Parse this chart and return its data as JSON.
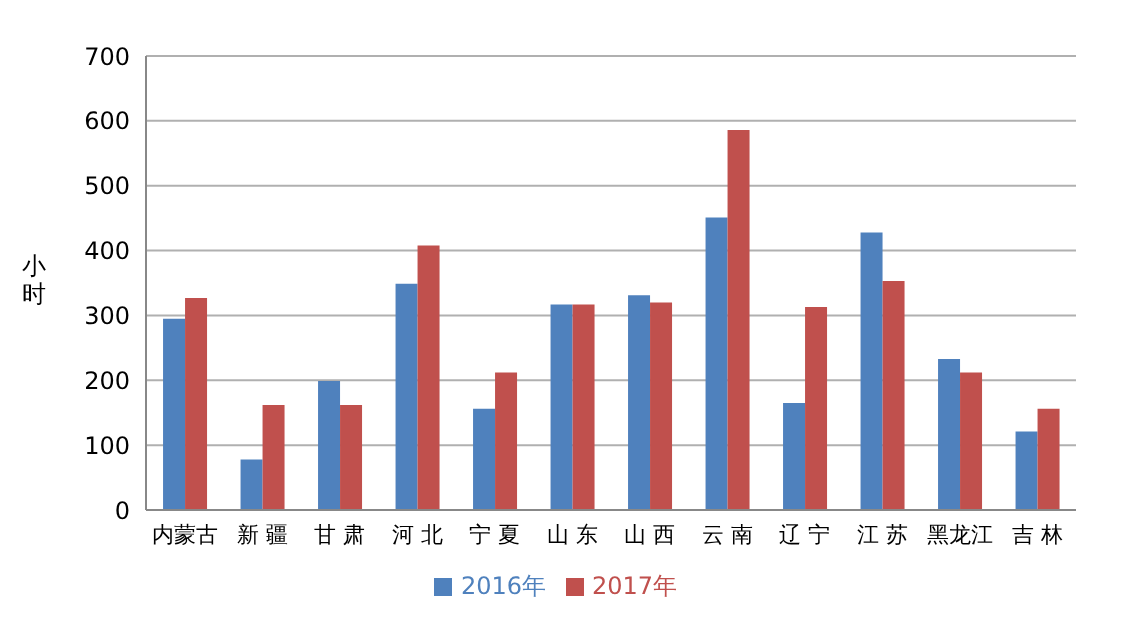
{
  "chart_data": {
    "type": "bar",
    "ylabel": "小时",
    "categories": [
      "内蒙古",
      "新 疆",
      "甘 肃",
      "河 北",
      "宁 夏",
      "山 东",
      "山 西",
      "云 南",
      "辽 宁",
      "江 苏",
      "黑龙江",
      "吉 林"
    ],
    "series": [
      {
        "name": "2016年",
        "color": "#4f81bd",
        "values": [
          295,
          78,
          199,
          349,
          156,
          317,
          331,
          451,
          165,
          428,
          233,
          121
        ]
      },
      {
        "name": "2017年",
        "color": "#c0504d",
        "values": [
          327,
          162,
          162,
          408,
          212,
          317,
          320,
          586,
          313,
          353,
          212,
          156
        ]
      }
    ],
    "ylim": [
      0,
      700
    ],
    "yticks": [
      0,
      100,
      200,
      300,
      400,
      500,
      600,
      700
    ],
    "grid": "y",
    "legend": "bottom"
  }
}
